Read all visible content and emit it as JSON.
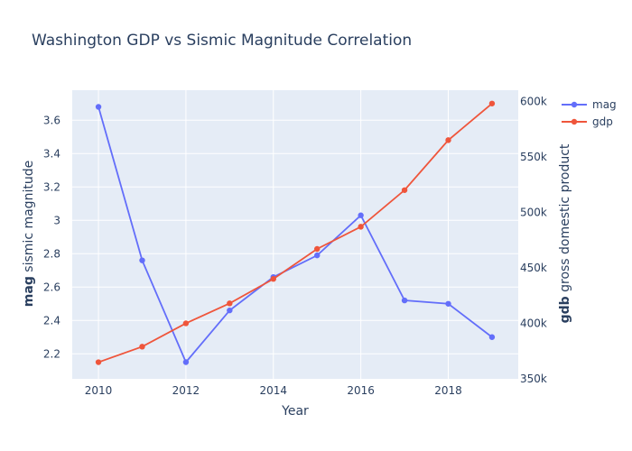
{
  "chart_data": {
    "type": "line",
    "title": "Washington GDP vs Sismic Magnitude Correlation",
    "xlabel": "Year",
    "ylabel_left": {
      "bold": "mag",
      "rest": " sismic magnitude"
    },
    "ylabel_right": {
      "bold": "gdb",
      "rest": " gross domestic product"
    },
    "x": [
      2010,
      2011,
      2012,
      2013,
      2014,
      2015,
      2016,
      2017,
      2018,
      2019
    ],
    "xlim": [
      2009.4,
      2019.6
    ],
    "ylim_left": [
      2.05,
      3.78
    ],
    "ylim_right": [
      350000,
      610000
    ],
    "xticks": [
      2010,
      2012,
      2014,
      2016,
      2018
    ],
    "yticks_left": [
      2.2,
      2.4,
      2.6,
      2.8,
      3,
      3.2,
      3.4,
      3.6
    ],
    "yticks_right": [
      {
        "value": 350000,
        "label": "350k"
      },
      {
        "value": 400000,
        "label": "400k"
      },
      {
        "value": 450000,
        "label": "450k"
      },
      {
        "value": 500000,
        "label": "500k"
      },
      {
        "value": 550000,
        "label": "550k"
      },
      {
        "value": 600000,
        "label": "600k"
      }
    ],
    "grid": true,
    "legend_position": "top-right",
    "series": [
      {
        "name": "mag",
        "axis": "left",
        "color": "#636efa",
        "values": [
          3.68,
          2.76,
          2.15,
          2.46,
          2.66,
          2.79,
          3.03,
          2.52,
          2.5,
          2.3
        ]
      },
      {
        "name": "gdp",
        "axis": "right",
        "color": "#ef553b",
        "values": [
          365000,
          379000,
          400000,
          418000,
          440000,
          467000,
          487000,
          520000,
          565000,
          598000
        ]
      }
    ]
  }
}
